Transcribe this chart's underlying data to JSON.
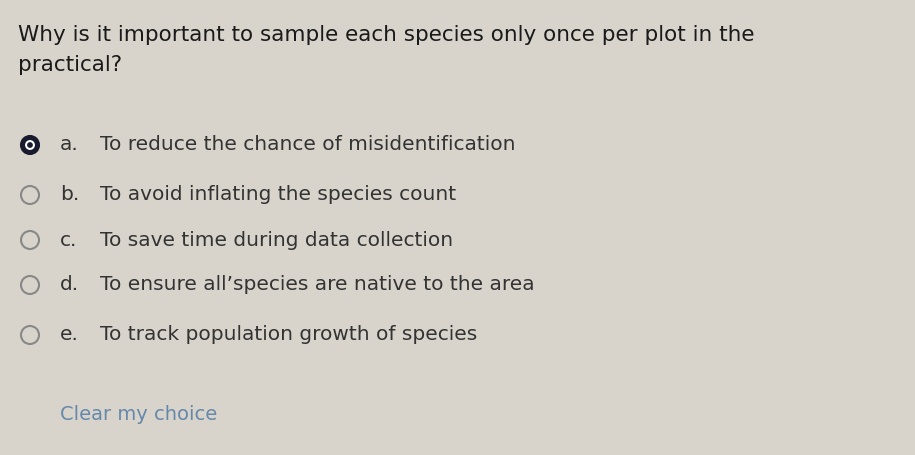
{
  "background_color": "#d8d4cc",
  "question_line1": "Why is it important to sample each species only once per plot in the",
  "question_line2": "practical?",
  "question_fontsize": 15.5,
  "question_color": "#1a1a1a",
  "options": [
    {
      "label": "a.",
      "text": "To reduce the chance of misidentification",
      "selected": true
    },
    {
      "label": "b.",
      "text": "To avoid inflating the species count",
      "selected": false
    },
    {
      "label": "c.",
      "text": "To save time during data collection",
      "selected": false
    },
    {
      "label": "d.",
      "text": "To ensure all’species are native to the area",
      "selected": false
    },
    {
      "label": "e.",
      "text": "To track population growth of species",
      "selected": false
    }
  ],
  "option_fontsize": 14.5,
  "option_color": "#333333",
  "label_color": "#333333",
  "clear_text": "Clear my choice",
  "clear_color": "#6688aa",
  "clear_fontsize": 14.0,
  "radio_selected_fill": "#1a1a2e",
  "radio_selected_edge": "#1a1a2e",
  "radio_selected_dot": "#1a1a2e",
  "radio_unselected_edge": "#888888",
  "radio_unselected_fill": "#d8d4cc"
}
